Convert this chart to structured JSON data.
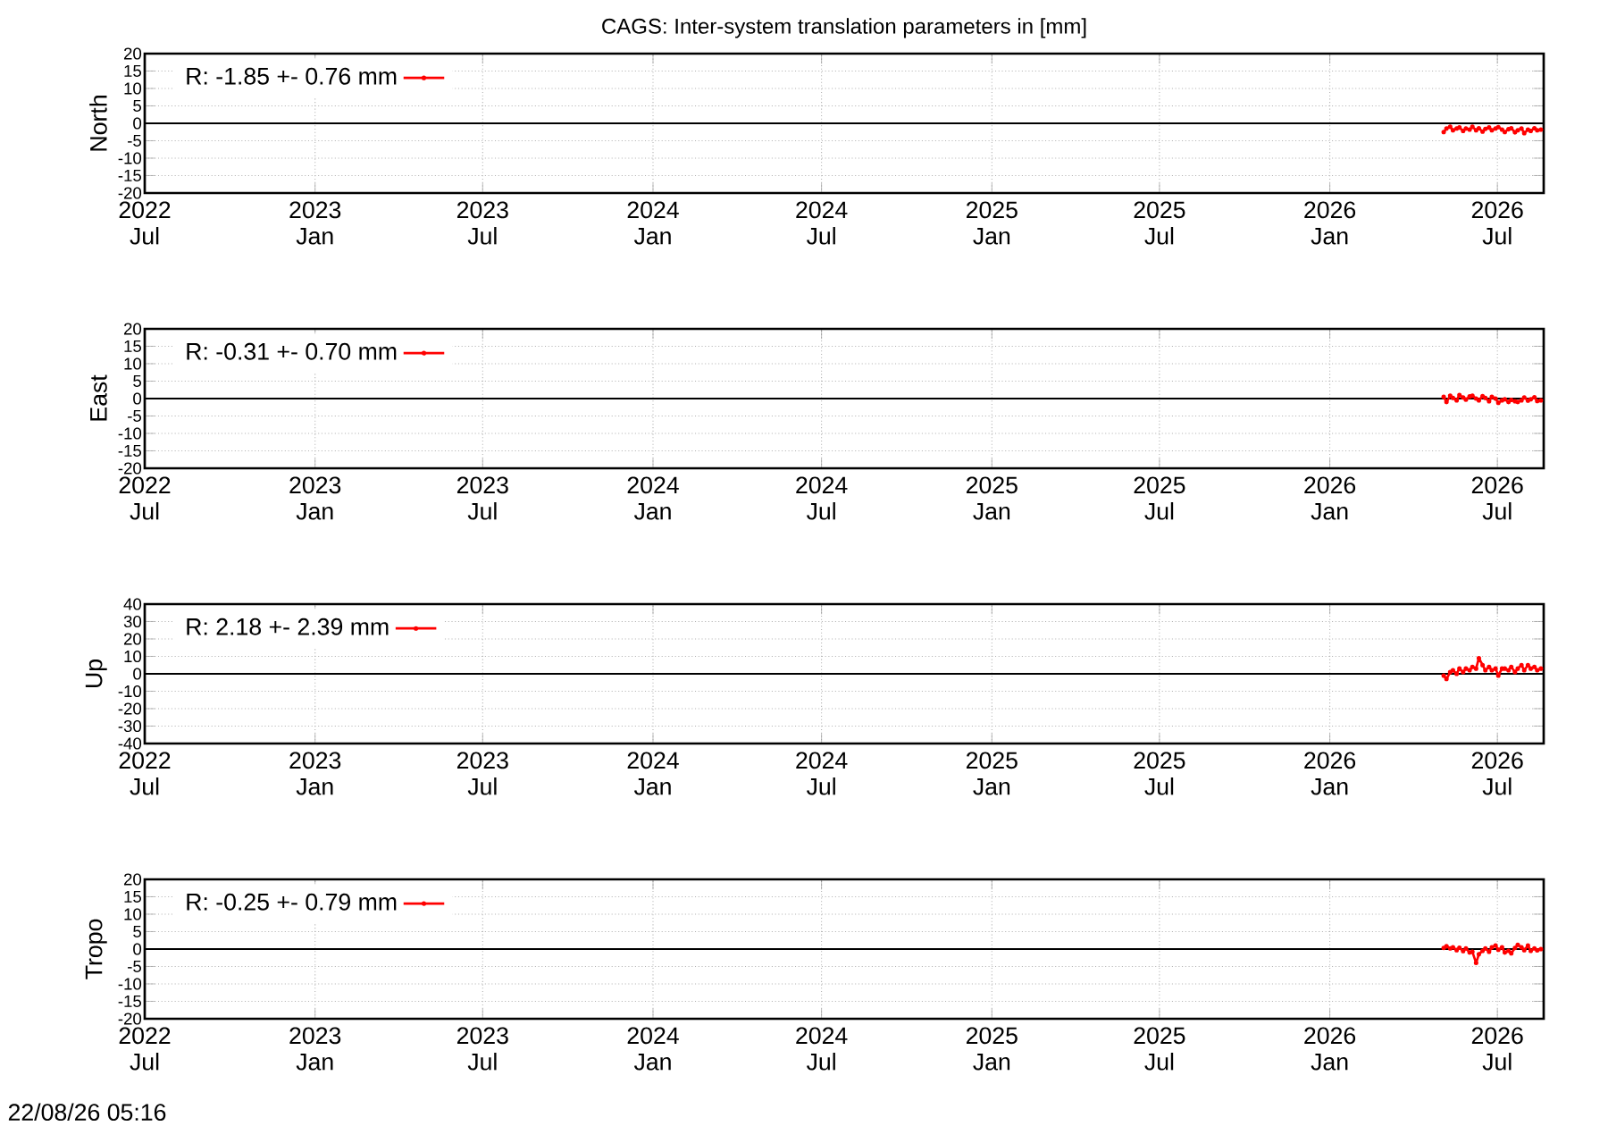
{
  "chart_data": [
    {
      "type": "line",
      "title": "CAGS: Inter-system translation parameters in [mm]",
      "ylabel": "North",
      "x": [
        "2026-05-04",
        "2026-05-07",
        "2026-05-11",
        "2026-05-14",
        "2026-05-18",
        "2026-05-21",
        "2026-05-25",
        "2026-05-28",
        "2026-06-01",
        "2026-06-04",
        "2026-06-08",
        "2026-06-11",
        "2026-06-15",
        "2026-06-18",
        "2026-06-22",
        "2026-06-25",
        "2026-06-29",
        "2026-07-02",
        "2026-07-06",
        "2026-07-09",
        "2026-07-13",
        "2026-07-16",
        "2026-07-20",
        "2026-07-23",
        "2026-07-27",
        "2026-07-30",
        "2026-08-03",
        "2026-08-06",
        "2026-08-10",
        "2026-08-13",
        "2026-08-17"
      ],
      "series": [
        {
          "name": "R:  -1.85 +- 0.76 mm",
          "color": "#ff0000",
          "values": [
            -2.5,
            -1.5,
            -1.0,
            -2.0,
            -1.5,
            -1.2,
            -2.2,
            -1.5,
            -1.8,
            -1.0,
            -2.0,
            -1.4,
            -2.4,
            -1.6,
            -1.2,
            -2.0,
            -1.5,
            -1.1,
            -1.8,
            -2.5,
            -1.7,
            -1.4,
            -2.6,
            -2.0,
            -1.5,
            -2.8,
            -1.8,
            -2.2,
            -1.4,
            -2.0,
            -1.8
          ]
        }
      ],
      "xlim": [
        "2022-07-01",
        "2026-08-20"
      ],
      "xticks": [
        {
          "value": "2022-07-01",
          "label": "2022 Jul"
        },
        {
          "value": "2023-01-01",
          "label": "2023 Jan"
        },
        {
          "value": "2023-07-01",
          "label": "2023 Jul"
        },
        {
          "value": "2024-01-01",
          "label": "2024 Jan"
        },
        {
          "value": "2024-07-01",
          "label": "2024 Jul"
        },
        {
          "value": "2025-01-01",
          "label": "2025 Jan"
        },
        {
          "value": "2025-07-01",
          "label": "2025 Jul"
        },
        {
          "value": "2026-01-01",
          "label": "2026 Jan"
        },
        {
          "value": "2026-07-01",
          "label": "2026 Jul"
        }
      ],
      "ylim": [
        -20,
        20
      ],
      "yticks": [
        -20,
        -15,
        -10,
        -5,
        0,
        5,
        10,
        15,
        20
      ],
      "ref_lines": [
        {
          "axis": "y",
          "value": 0
        }
      ],
      "grid": true,
      "legend": "top left",
      "marker": "circle"
    },
    {
      "type": "line",
      "ylabel": "East",
      "x": [
        "2026-05-04",
        "2026-05-07",
        "2026-05-11",
        "2026-05-14",
        "2026-05-18",
        "2026-05-21",
        "2026-05-25",
        "2026-05-28",
        "2026-06-01",
        "2026-06-04",
        "2026-06-08",
        "2026-06-11",
        "2026-06-15",
        "2026-06-18",
        "2026-06-22",
        "2026-06-25",
        "2026-06-29",
        "2026-07-02",
        "2026-07-06",
        "2026-07-09",
        "2026-07-13",
        "2026-07-16",
        "2026-07-20",
        "2026-07-23",
        "2026-07-27",
        "2026-07-30",
        "2026-08-03",
        "2026-08-06",
        "2026-08-10",
        "2026-08-13",
        "2026-08-17"
      ],
      "series": [
        {
          "name": "R:  -0.31 +- 0.70 mm",
          "color": "#ff0000",
          "values": [
            0.5,
            -1.0,
            0.8,
            0.2,
            -0.5,
            1.0,
            0.3,
            -0.3,
            0.6,
            0.8,
            0.0,
            -0.5,
            0.7,
            0.2,
            -0.8,
            0.5,
            0.0,
            -1.2,
            -0.5,
            -0.2,
            -1.0,
            -0.4,
            -0.8,
            -1.0,
            -0.5,
            0.3,
            -0.6,
            -0.2,
            0.4,
            -0.7,
            -0.5
          ]
        }
      ],
      "xlim": [
        "2022-07-01",
        "2026-08-20"
      ],
      "xticks": [
        {
          "value": "2022-07-01",
          "label": "2022 Jul"
        },
        {
          "value": "2023-01-01",
          "label": "2023 Jan"
        },
        {
          "value": "2023-07-01",
          "label": "2023 Jul"
        },
        {
          "value": "2024-01-01",
          "label": "2024 Jan"
        },
        {
          "value": "2024-07-01",
          "label": "2024 Jul"
        },
        {
          "value": "2025-01-01",
          "label": "2025 Jan"
        },
        {
          "value": "2025-07-01",
          "label": "2025 Jul"
        },
        {
          "value": "2026-01-01",
          "label": "2026 Jan"
        },
        {
          "value": "2026-07-01",
          "label": "2026 Jul"
        }
      ],
      "ylim": [
        -20,
        20
      ],
      "yticks": [
        -20,
        -15,
        -10,
        -5,
        0,
        5,
        10,
        15,
        20
      ],
      "ref_lines": [
        {
          "axis": "y",
          "value": 0
        }
      ],
      "grid": true,
      "legend": "top left",
      "marker": "circle"
    },
    {
      "type": "line",
      "ylabel": "Up",
      "x": [
        "2026-05-04",
        "2026-05-07",
        "2026-05-11",
        "2026-05-14",
        "2026-05-18",
        "2026-05-21",
        "2026-05-25",
        "2026-05-28",
        "2026-06-01",
        "2026-06-04",
        "2026-06-08",
        "2026-06-11",
        "2026-06-15",
        "2026-06-18",
        "2026-06-22",
        "2026-06-25",
        "2026-06-29",
        "2026-07-02",
        "2026-07-06",
        "2026-07-09",
        "2026-07-13",
        "2026-07-16",
        "2026-07-20",
        "2026-07-23",
        "2026-07-27",
        "2026-07-30",
        "2026-08-03",
        "2026-08-06",
        "2026-08-10",
        "2026-08-13",
        "2026-08-17"
      ],
      "series": [
        {
          "name": "R:  2.18 +- 2.39 mm",
          "color": "#ff0000",
          "values": [
            -1,
            -3,
            1,
            2,
            0,
            3,
            1,
            3,
            2,
            4,
            3,
            9,
            5,
            2,
            4,
            2,
            3,
            -1,
            3,
            3,
            2,
            4,
            1,
            3,
            5,
            2,
            5,
            3,
            4,
            2,
            3
          ]
        }
      ],
      "xlim": [
        "2022-07-01",
        "2026-08-20"
      ],
      "xticks": [
        {
          "value": "2022-07-01",
          "label": "2022 Jul"
        },
        {
          "value": "2023-01-01",
          "label": "2023 Jan"
        },
        {
          "value": "2023-07-01",
          "label": "2023 Jul"
        },
        {
          "value": "2024-01-01",
          "label": "2024 Jan"
        },
        {
          "value": "2024-07-01",
          "label": "2024 Jul"
        },
        {
          "value": "2025-01-01",
          "label": "2025 Jan"
        },
        {
          "value": "2025-07-01",
          "label": "2025 Jul"
        },
        {
          "value": "2026-01-01",
          "label": "2026 Jan"
        },
        {
          "value": "2026-07-01",
          "label": "2026 Jul"
        }
      ],
      "ylim": [
        -40,
        40
      ],
      "yticks": [
        -40,
        -30,
        -20,
        -10,
        0,
        10,
        20,
        30,
        40
      ],
      "ref_lines": [
        {
          "axis": "y",
          "value": 0
        }
      ],
      "grid": true,
      "legend": "top left",
      "marker": "circle"
    },
    {
      "type": "line",
      "ylabel": "Tropo",
      "annotations": [
        "22/08/26 05:16"
      ],
      "x": [
        "2026-05-04",
        "2026-05-07",
        "2026-05-11",
        "2026-05-14",
        "2026-05-18",
        "2026-05-21",
        "2026-05-25",
        "2026-05-28",
        "2026-06-01",
        "2026-06-04",
        "2026-06-08",
        "2026-06-11",
        "2026-06-15",
        "2026-06-18",
        "2026-06-22",
        "2026-06-25",
        "2026-06-29",
        "2026-07-02",
        "2026-07-06",
        "2026-07-09",
        "2026-07-13",
        "2026-07-16",
        "2026-07-20",
        "2026-07-23",
        "2026-07-27",
        "2026-07-30",
        "2026-08-03",
        "2026-08-06",
        "2026-08-10",
        "2026-08-13",
        "2026-08-17"
      ],
      "series": [
        {
          "name": "R:  -0.25 +- 0.79 mm",
          "color": "#ff0000",
          "values": [
            0.3,
            0.8,
            0.2,
            0.5,
            -0.3,
            0.4,
            -0.6,
            0.2,
            -1.0,
            -0.8,
            -4.0,
            -1.5,
            -0.5,
            0.2,
            -0.8,
            0.5,
            1.0,
            -0.2,
            0.5,
            -1.0,
            -0.5,
            -1.2,
            0.3,
            1.2,
            0.5,
            -0.3,
            1.0,
            -0.5,
            0.2,
            -0.4,
            0.0
          ]
        }
      ],
      "xlim": [
        "2022-07-01",
        "2026-08-20"
      ],
      "xticks": [
        {
          "value": "2022-07-01",
          "label": "2022 Jul"
        },
        {
          "value": "2023-01-01",
          "label": "2023 Jan"
        },
        {
          "value": "2023-07-01",
          "label": "2023 Jul"
        },
        {
          "value": "2024-01-01",
          "label": "2024 Jan"
        },
        {
          "value": "2024-07-01",
          "label": "2024 Jul"
        },
        {
          "value": "2025-01-01",
          "label": "2025 Jan"
        },
        {
          "value": "2025-07-01",
          "label": "2025 Jul"
        },
        {
          "value": "2026-01-01",
          "label": "2026 Jan"
        },
        {
          "value": "2026-07-01",
          "label": "2026 Jul"
        }
      ],
      "ylim": [
        -20,
        20
      ],
      "yticks": [
        -20,
        -15,
        -10,
        -5,
        0,
        5,
        10,
        15,
        20
      ],
      "ref_lines": [
        {
          "axis": "y",
          "value": 0
        }
      ],
      "grid": true,
      "legend": "top left",
      "marker": "circle"
    }
  ]
}
